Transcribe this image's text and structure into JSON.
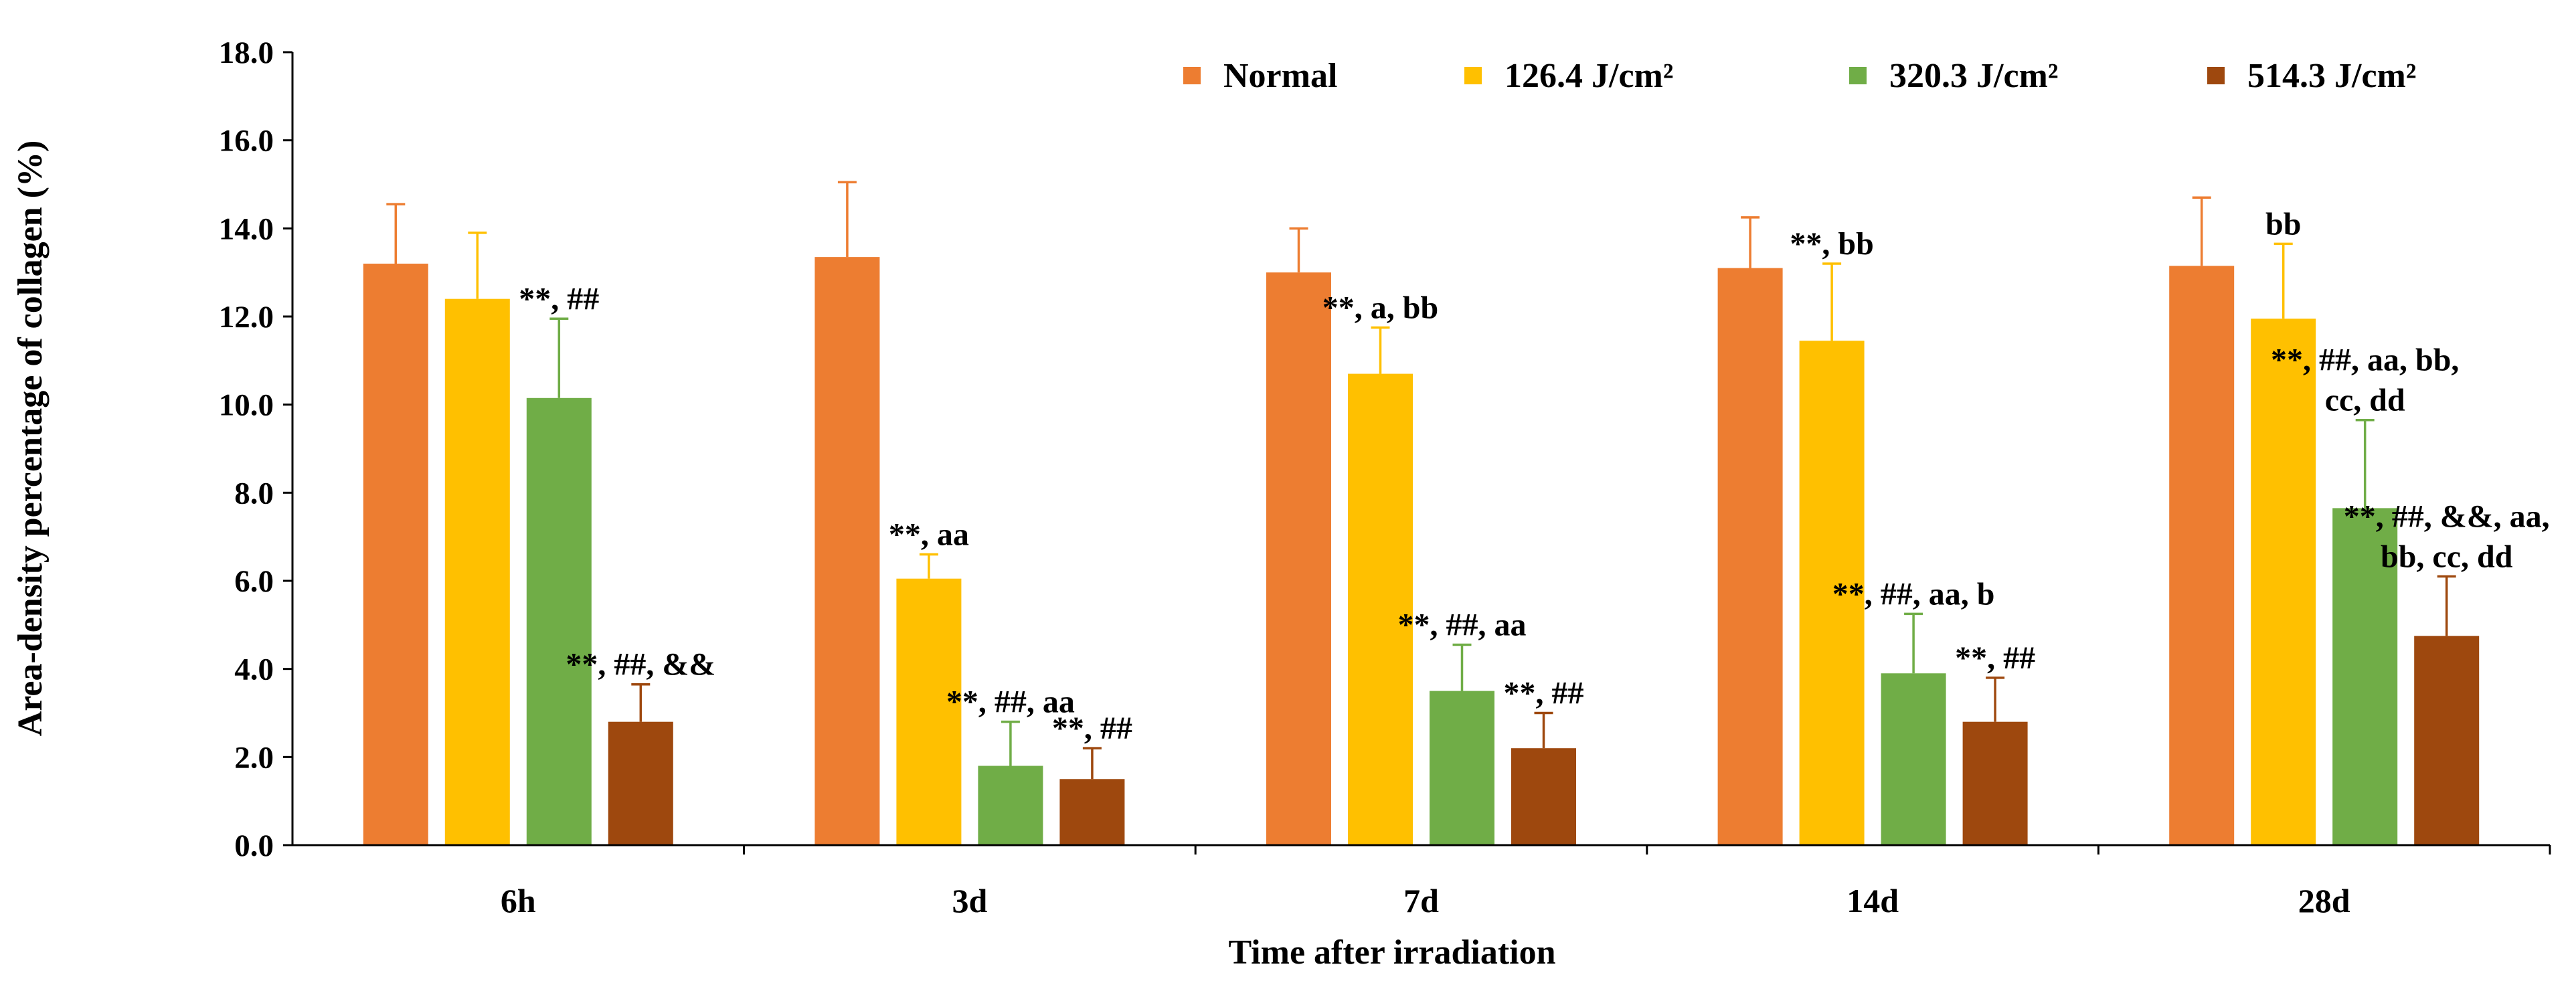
{
  "chart_data": {
    "type": "bar",
    "xlabel": "Time after irradiation",
    "ylabel": "Area-density  percentage of collagen (%)",
    "ylim": [
      0,
      18
    ],
    "ytick_step": 2,
    "ytick_labels": [
      "0.0",
      "2.0",
      "4.0",
      "6.0",
      "8.0",
      "10.0",
      "12.0",
      "14.0",
      "16.0",
      "18.0"
    ],
    "categories": [
      "6h",
      "3d",
      "7d",
      "14d",
      "28d"
    ],
    "legend_position": "top",
    "grid": false,
    "series": [
      {
        "name": "Normal",
        "color": "#ED7D31",
        "values": [
          13.2,
          13.35,
          13.0,
          13.1,
          13.15
        ],
        "errors": [
          1.35,
          1.7,
          1.0,
          1.15,
          1.55
        ]
      },
      {
        "name": "126.4 J/cm²",
        "color": "#FFC000",
        "values": [
          12.4,
          6.05,
          10.7,
          11.45,
          11.95
        ],
        "errors": [
          1.5,
          0.55,
          1.05,
          1.75,
          1.7
        ]
      },
      {
        "name": "320.3 J/cm²",
        "color": "#70AD47",
        "values": [
          10.15,
          1.8,
          3.5,
          3.9,
          7.65
        ],
        "errors": [
          1.8,
          1.0,
          1.05,
          1.35,
          2.0
        ]
      },
      {
        "name": "514.3 J/cm²",
        "color": "#9E480E",
        "values": [
          2.8,
          1.5,
          2.2,
          2.8,
          4.75
        ],
        "errors": [
          0.85,
          0.7,
          0.8,
          1.0,
          1.35
        ]
      }
    ],
    "annotations": [
      {
        "category": 0,
        "series": 2,
        "lines": [
          "**, ##"
        ]
      },
      {
        "category": 0,
        "series": 3,
        "lines": [
          "**, ##, &&"
        ]
      },
      {
        "category": 1,
        "series": 1,
        "lines": [
          "**, aa"
        ]
      },
      {
        "category": 1,
        "series": 2,
        "lines": [
          "**, ##, aa"
        ]
      },
      {
        "category": 1,
        "series": 3,
        "lines": [
          "**, ##"
        ]
      },
      {
        "category": 2,
        "series": 1,
        "lines": [
          "**, a, bb"
        ]
      },
      {
        "category": 2,
        "series": 2,
        "lines": [
          "**, ##, aa"
        ]
      },
      {
        "category": 2,
        "series": 3,
        "lines": [
          "**, ##"
        ]
      },
      {
        "category": 3,
        "series": 1,
        "lines": [
          "**, bb"
        ]
      },
      {
        "category": 3,
        "series": 2,
        "lines": [
          "**, ##, aa, b"
        ]
      },
      {
        "category": 3,
        "series": 3,
        "lines": [
          "**, ##"
        ]
      },
      {
        "category": 4,
        "series": 1,
        "lines": [
          "bb"
        ]
      },
      {
        "category": 4,
        "series": 2,
        "lines": [
          "**, ##, aa, bb,",
          "cc, dd"
        ]
      },
      {
        "category": 4,
        "series": 3,
        "lines": [
          "**, ##, &&, aa,",
          "bb, cc, dd"
        ]
      }
    ]
  }
}
